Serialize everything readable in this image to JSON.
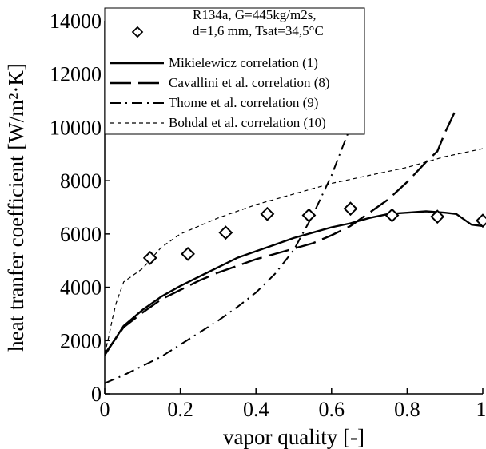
{
  "chart_data": {
    "type": "line",
    "title": "",
    "xlabel": "vapor quality [-]",
    "ylabel": "heat tranfer coefficient [W/m²·K]",
    "xlim": [
      0,
      1
    ],
    "ylim": [
      0,
      14000
    ],
    "x_ticks": [
      0,
      0.2,
      0.4,
      0.6,
      0.8,
      1
    ],
    "x_tick_labels": [
      "0",
      "0.2",
      "0.4",
      "0.6",
      "0.8",
      "1"
    ],
    "y_ticks": [
      0,
      2000,
      4000,
      6000,
      8000,
      10000,
      12000,
      14000
    ],
    "y_tick_labels": [
      "0",
      "2000",
      "4000",
      "6000",
      "8000",
      "10000",
      "12000",
      "14000"
    ],
    "grid": false,
    "legend_position": "top",
    "conditions": [
      "R134a, G=445kg/m2s,",
      "d=1,6 mm, Tsat=34,5°C"
    ],
    "experimental": {
      "marker": "diamond",
      "x": [
        0.12,
        0.22,
        0.32,
        0.43,
        0.54,
        0.65,
        0.76,
        0.88,
        1.0
      ],
      "y": [
        5100,
        5250,
        6050,
        6750,
        6700,
        6950,
        6700,
        6650,
        6500
      ]
    },
    "series": [
      {
        "name": "Mikielewicz correlation (1)",
        "style": "solid",
        "x": [
          0,
          0.05,
          0.1,
          0.15,
          0.2,
          0.25,
          0.3,
          0.35,
          0.4,
          0.45,
          0.5,
          0.55,
          0.6,
          0.65,
          0.7,
          0.75,
          0.8,
          0.85,
          0.9,
          0.93,
          0.97,
          1.0
        ],
        "y": [
          1450,
          2550,
          3150,
          3650,
          4050,
          4400,
          4750,
          5100,
          5350,
          5600,
          5850,
          6050,
          6250,
          6400,
          6600,
          6750,
          6800,
          6850,
          6800,
          6750,
          6350,
          6300
        ]
      },
      {
        "name": "Cavallini et al. correlation (8)",
        "style": "long-dash",
        "x": [
          0,
          0.05,
          0.1,
          0.15,
          0.2,
          0.25,
          0.3,
          0.35,
          0.4,
          0.45,
          0.5,
          0.55,
          0.6,
          0.65,
          0.7,
          0.75,
          0.8,
          0.85,
          0.88,
          0.9,
          0.93
        ],
        "y": [
          1500,
          2500,
          3050,
          3550,
          3900,
          4250,
          4550,
          4800,
          5050,
          5250,
          5450,
          5650,
          5950,
          6300,
          6800,
          7300,
          7950,
          8700,
          9100,
          9800,
          10700
        ]
      },
      {
        "name": "Thome et al. correlation (9)",
        "style": "dash-dot",
        "x": [
          0,
          0.05,
          0.1,
          0.15,
          0.2,
          0.25,
          0.3,
          0.35,
          0.4,
          0.45,
          0.5,
          0.55,
          0.58,
          0.6,
          0.63,
          0.65
        ],
        "y": [
          400,
          700,
          1050,
          1400,
          1850,
          2300,
          2750,
          3250,
          3800,
          4500,
          5400,
          6700,
          7600,
          8200,
          9300,
          10000
        ]
      },
      {
        "name": "Bohdal et al. correlation (10)",
        "style": "short-dash",
        "x": [
          0,
          0.01,
          0.02,
          0.03,
          0.05,
          0.1,
          0.15,
          0.2,
          0.3,
          0.4,
          0.5,
          0.6,
          0.7,
          0.8,
          0.9,
          1.0
        ],
        "y": [
          1500,
          2100,
          2800,
          3400,
          4200,
          4700,
          5500,
          6000,
          6600,
          7100,
          7500,
          7900,
          8200,
          8500,
          8900,
          9200
        ]
      }
    ]
  }
}
